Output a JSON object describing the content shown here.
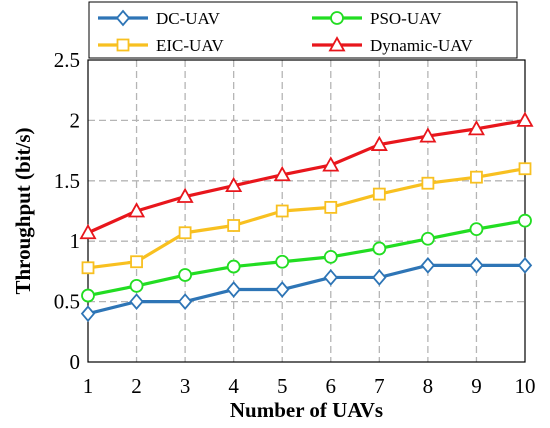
{
  "chart_data": {
    "type": "line",
    "xlabel": "Number of UAVs",
    "ylabel": "Throughput (bit/s)",
    "x": [
      1,
      2,
      3,
      4,
      5,
      6,
      7,
      8,
      9,
      10
    ],
    "xlim": [
      1,
      10
    ],
    "ylim": [
      0,
      2.5
    ],
    "xticks": [
      "1",
      "2",
      "3",
      "4",
      "5",
      "6",
      "7",
      "8",
      "9",
      "10"
    ],
    "yticks": [
      "0",
      "0.5",
      "1",
      "1.5",
      "2",
      "2.5"
    ],
    "grid": true,
    "legend_position": "top",
    "series": [
      {
        "name": "DC-UAV",
        "color": "#2E75B6",
        "marker": "diamond",
        "values": [
          0.4,
          0.5,
          0.5,
          0.6,
          0.6,
          0.7,
          0.7,
          0.8,
          0.8,
          0.8
        ]
      },
      {
        "name": "PSO-UAV",
        "color": "#22DD22",
        "marker": "circle",
        "values": [
          0.55,
          0.63,
          0.72,
          0.79,
          0.83,
          0.87,
          0.94,
          1.02,
          1.1,
          1.17
        ]
      },
      {
        "name": "EIC-UAV",
        "color": "#F8C020",
        "marker": "square",
        "values": [
          0.78,
          0.83,
          1.07,
          1.13,
          1.25,
          1.28,
          1.39,
          1.48,
          1.53,
          1.6
        ]
      },
      {
        "name": "Dynamic-UAV",
        "color": "#E8161C",
        "marker": "triangle",
        "values": [
          1.07,
          1.25,
          1.37,
          1.46,
          1.55,
          1.63,
          1.8,
          1.87,
          1.93,
          2.0
        ]
      }
    ]
  }
}
